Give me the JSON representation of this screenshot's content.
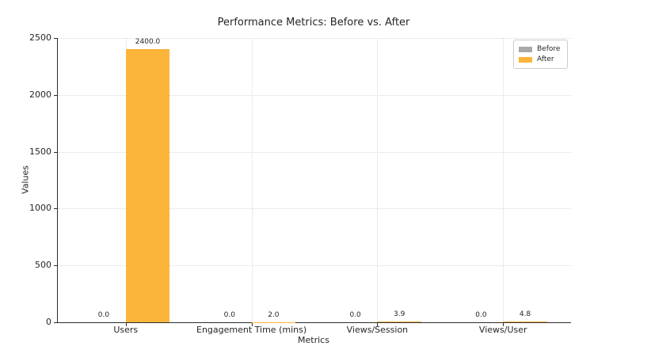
{
  "chart_data": {
    "type": "bar",
    "title": "Performance Metrics: Before vs. After",
    "xlabel": "Metrics",
    "ylabel": "Values",
    "categories": [
      "Users",
      "Engagement Time (mins)",
      "Views/Session",
      "Views/User"
    ],
    "series": [
      {
        "name": "Before",
        "color": "#a9a9a9",
        "values": [
          0.0,
          0.0,
          0.0,
          0.0
        ],
        "labels": [
          "0.0",
          "0.0",
          "0.0",
          "0.0"
        ]
      },
      {
        "name": "After",
        "color": "#fdb43a",
        "values": [
          2400.0,
          2.0,
          3.9,
          4.8
        ],
        "labels": [
          "2400.0",
          "2.0",
          "3.9",
          "4.8"
        ]
      }
    ],
    "yticks": [
      0,
      500,
      1000,
      1500,
      2000,
      2500
    ],
    "ylim": [
      0,
      2500
    ],
    "bar_width_frac": 0.35,
    "grid": "dotted, horizontal and vertical",
    "legend_position": "upper right",
    "palette": {
      "before": "#a9a9a9",
      "after": "#fdb43a",
      "grid": "#d9d9d9",
      "axis": "#2b2b2b",
      "text": "#262626",
      "legend_border": "#cccccc"
    }
  }
}
